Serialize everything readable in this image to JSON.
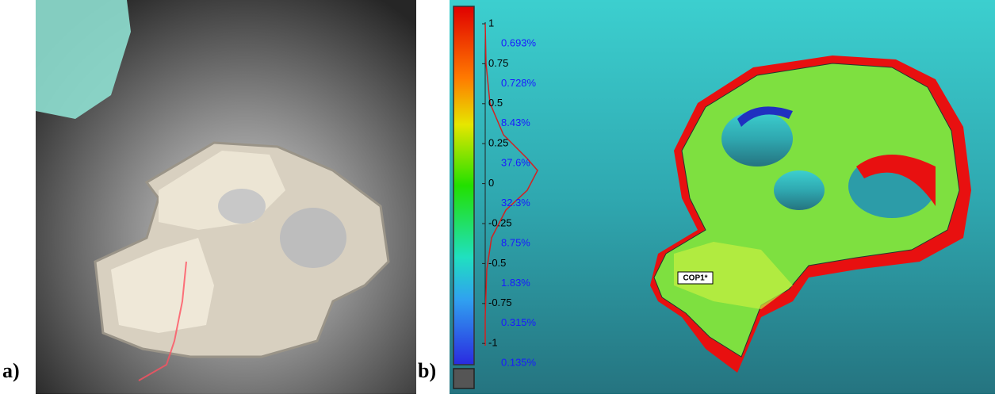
{
  "panels": [
    {
      "label": "a)"
    },
    {
      "label": "b)",
      "scale_ticks": [
        "1",
        "0.75",
        "0.5",
        "0.25",
        "0",
        "-0.25",
        "-0.5",
        "-0.75",
        "-1"
      ],
      "percentages": [
        "0.693%",
        "0.728%",
        "8.43%",
        "37.6%",
        "32.3%",
        "8.75%",
        "1.83%",
        "0.315%",
        "0.135%"
      ],
      "annotation": "COP1*"
    }
  ]
}
